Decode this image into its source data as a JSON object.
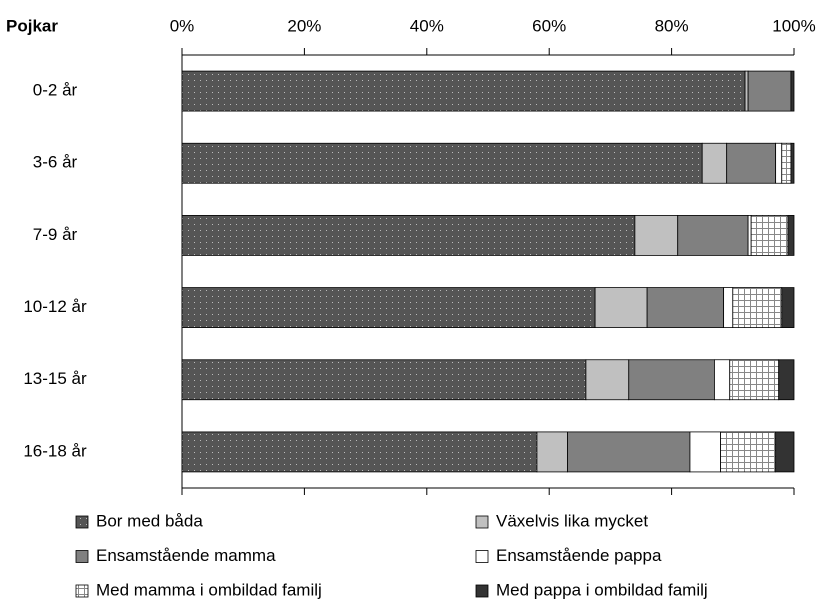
{
  "chart_data": {
    "type": "stacked_barh",
    "title": "Pojkar",
    "categories": [
      "0-2 år",
      "3-6 år",
      "7-9 år",
      "10-12 år",
      "13-15 år",
      "16-18 år"
    ],
    "series": [
      {
        "name": "Bor med båda",
        "color": "#555555",
        "values": [
          92,
          85,
          74,
          67.5,
          66,
          58
        ]
      },
      {
        "name": "Växelvis lika mycket",
        "color": "#c0c0c0",
        "values": [
          0.5,
          4,
          7,
          8.5,
          7,
          5
        ]
      },
      {
        "name": "Ensamstående mamma",
        "color": "#808080",
        "values": [
          7,
          8,
          11.5,
          12.5,
          14,
          20
        ]
      },
      {
        "name": "Ensamstående pappa",
        "color": "#ffffff",
        "values": [
          0,
          1,
          0.5,
          1.5,
          2.5,
          5
        ]
      },
      {
        "name": "Med mamma i ombildad familj",
        "color": "#ffffff",
        "values": [
          0,
          1.5,
          6,
          8,
          8,
          9
        ]
      },
      {
        "name": "Med pappa i ombildad familj",
        "color": "#333333",
        "values": [
          0.5,
          0.5,
          1,
          2,
          2.5,
          3
        ]
      }
    ],
    "xlim": [
      0,
      100
    ],
    "xticks": [
      {
        "value": 0,
        "label": "0%"
      },
      {
        "value": 20,
        "label": "20%"
      },
      {
        "value": 40,
        "label": "40%"
      },
      {
        "value": 60,
        "label": "60%"
      },
      {
        "value": 80,
        "label": "80%"
      },
      {
        "value": 100,
        "label": "100%"
      }
    ]
  }
}
